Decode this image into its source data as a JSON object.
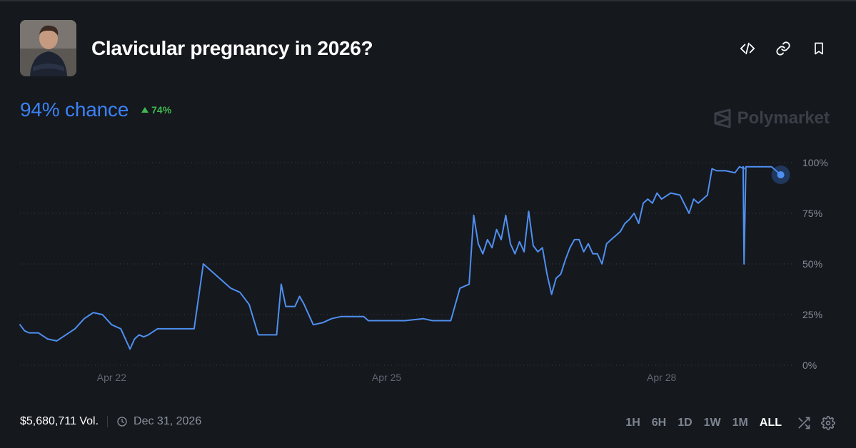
{
  "market": {
    "title": "Clavicular pregnancy in 2026?",
    "chance_text": "94% chance",
    "change_text": "74%",
    "brand": "Polymarket",
    "accent_color": "#3b82f6",
    "change_color": "#3fb950"
  },
  "footer": {
    "volume": "$5,680,711 Vol.",
    "end_date": "Dec 31, 2026",
    "ranges": [
      "1H",
      "6H",
      "1D",
      "1W",
      "1M",
      "ALL"
    ],
    "active_range": "ALL"
  },
  "icons": {
    "embed": "code-icon",
    "link": "link-icon",
    "bookmark": "bookmark-icon",
    "clock": "clock-icon",
    "shuffle": "shuffle-icon",
    "settings": "gear-icon"
  },
  "chart_data": {
    "type": "line",
    "title": "",
    "xlabel": "",
    "ylabel": "",
    "ylim": [
      0,
      100
    ],
    "y_ticks": [
      "100%",
      "75%",
      "50%",
      "25%",
      "0%"
    ],
    "x_ticks": [
      "Apr 22",
      "Apr 25",
      "Apr 28"
    ],
    "grid": true,
    "series": [
      {
        "color": "#4f8ff0",
        "x": [
          21.0,
          21.05,
          21.1,
          21.2,
          21.3,
          21.4,
          21.5,
          21.6,
          21.7,
          21.8,
          21.9,
          22.0,
          22.1,
          22.2,
          22.25,
          22.3,
          22.35,
          22.4,
          22.5,
          22.6,
          22.7,
          22.8,
          22.9,
          23.0,
          23.3,
          23.35,
          23.4,
          23.5,
          23.6,
          23.7,
          23.8,
          23.85,
          23.9,
          23.95,
          24.0,
          24.05,
          24.1,
          24.2,
          24.3,
          24.4,
          24.5,
          24.6,
          24.7,
          24.75,
          24.8,
          25.0,
          25.1,
          25.2,
          25.4,
          25.5,
          25.6,
          25.7,
          25.8,
          25.9,
          25.95,
          26.0,
          26.05,
          26.1,
          26.15,
          26.2,
          26.25,
          26.3,
          26.35,
          26.4,
          26.45,
          26.5,
          26.55,
          26.6,
          26.65,
          26.7,
          26.75,
          26.8,
          26.85,
          26.9,
          26.95,
          27.0,
          27.05,
          27.1,
          27.15,
          27.2,
          27.25,
          27.3,
          27.35,
          27.4,
          27.45,
          27.5,
          27.55,
          27.6,
          27.65,
          27.7,
          27.75,
          27.8,
          27.85,
          27.9,
          27.95,
          28.0,
          28.1,
          28.2,
          28.3,
          28.35,
          28.4,
          28.45,
          28.5,
          28.55,
          28.6,
          28.7,
          28.8,
          28.85,
          28.9,
          29.0,
          29.1,
          29.2
        ],
        "values": [
          20,
          17,
          16,
          16,
          13,
          12,
          15,
          18,
          23,
          26,
          25,
          20,
          18,
          8,
          13,
          15,
          14,
          15,
          18,
          18,
          18,
          18,
          18,
          50,
          38,
          37,
          36,
          30,
          15,
          15,
          15,
          40,
          29,
          29,
          29,
          34,
          30,
          20,
          21,
          23,
          24,
          24,
          24,
          24,
          22,
          22,
          22,
          22,
          23,
          22,
          22,
          22,
          38,
          40,
          74,
          60,
          55,
          62,
          58,
          67,
          62,
          74,
          60,
          55,
          61,
          56,
          76,
          59,
          56,
          58,
          45,
          35,
          43,
          45,
          52,
          58,
          62,
          62,
          56,
          60,
          55,
          55,
          50,
          60,
          62,
          64,
          66,
          70,
          72,
          75,
          70,
          80,
          82,
          80,
          85,
          82,
          85,
          84,
          75,
          82,
          80,
          82,
          84,
          97,
          96,
          96,
          95,
          98,
          97,
          98,
          98,
          98
        ]
      }
    ],
    "special_points": [
      {
        "x": 28.9,
        "value": 50
      },
      {
        "x": 29.3,
        "value": 94
      }
    ]
  }
}
